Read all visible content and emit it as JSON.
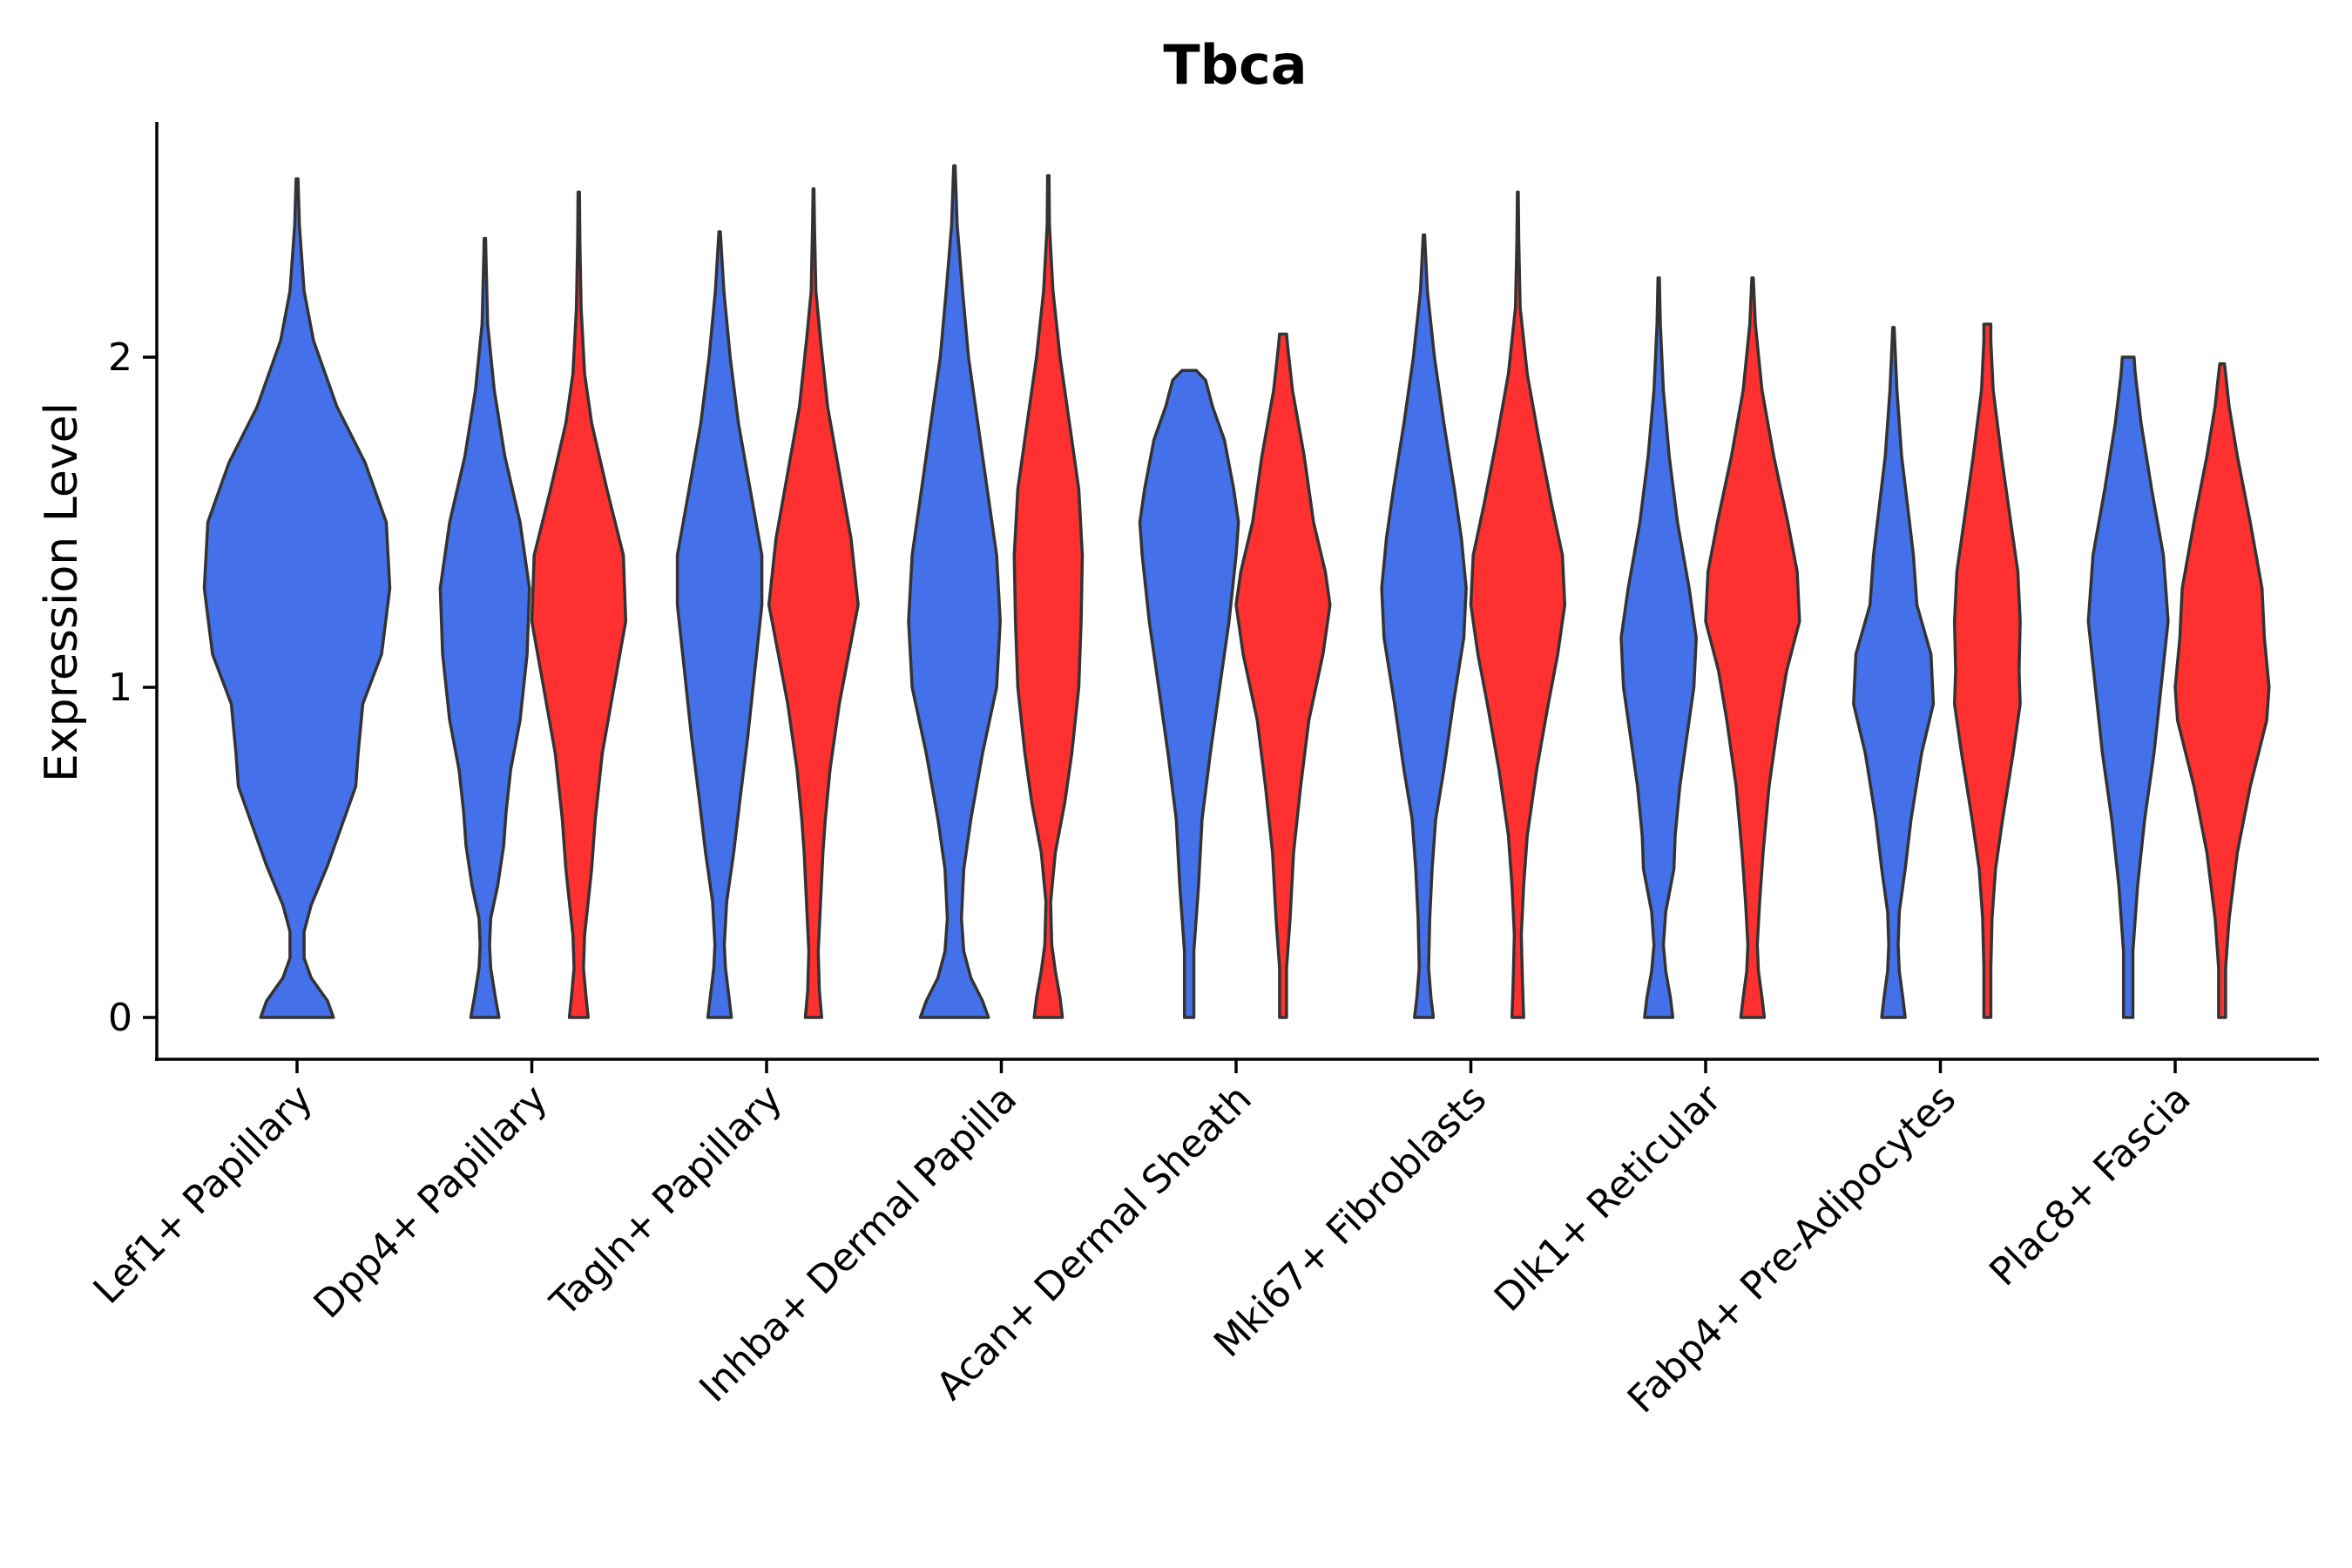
{
  "chart_data": {
    "type": "violin",
    "title": "Tbca",
    "xlabel": "",
    "ylabel": "Expression Level",
    "ylim": [
      -0.13,
      2.72
    ],
    "yticks": [
      0,
      1,
      2
    ],
    "grid": false,
    "legend": "none",
    "categories": [
      "Lef1+ Papillary",
      "Dpp4+ Papillary",
      "Tagln+ Papillary",
      "Inhba+ Dermal Papilla",
      "Acan+ Dermal Sheath",
      "Mki67+ Fibroblasts",
      "Dlk1+ Reticular",
      "Fabp4+ Pre-Adipocytes",
      "Plac8+ Fascia"
    ],
    "series_colors": {
      "blue": "#4470ea",
      "red": "#fe3030"
    },
    "violins": [
      {
        "category": "Lef1+ Papillary",
        "group": "blue",
        "offset": 0,
        "profile": [
          [
            0,
            0.155
          ],
          [
            0.05,
            0.13
          ],
          [
            0.12,
            0.06
          ],
          [
            0.18,
            0.03
          ],
          [
            0.26,
            0.03
          ],
          [
            0.34,
            0.06
          ],
          [
            0.46,
            0.13
          ],
          [
            0.58,
            0.19
          ],
          [
            0.7,
            0.25
          ],
          [
            0.8,
            0.26
          ],
          [
            0.95,
            0.28
          ],
          [
            1.1,
            0.36
          ],
          [
            1.3,
            0.395
          ],
          [
            1.5,
            0.38
          ],
          [
            1.68,
            0.29
          ],
          [
            1.85,
            0.17
          ],
          [
            2.05,
            0.07
          ],
          [
            2.2,
            0.03
          ],
          [
            2.4,
            0.01
          ],
          [
            2.54,
            0.004
          ]
        ]
      },
      {
        "category": "Dpp4+ Papillary",
        "group": "blue",
        "offset": -0.2,
        "profile": [
          [
            0,
            0.06
          ],
          [
            0.06,
            0.045
          ],
          [
            0.15,
            0.025
          ],
          [
            0.22,
            0.02
          ],
          [
            0.3,
            0.025
          ],
          [
            0.4,
            0.055
          ],
          [
            0.52,
            0.08
          ],
          [
            0.62,
            0.09
          ],
          [
            0.75,
            0.11
          ],
          [
            0.9,
            0.15
          ],
          [
            1.1,
            0.18
          ],
          [
            1.3,
            0.19
          ],
          [
            1.5,
            0.15
          ],
          [
            1.7,
            0.085
          ],
          [
            1.9,
            0.04
          ],
          [
            2.1,
            0.012
          ],
          [
            2.3,
            0.005
          ],
          [
            2.36,
            0.003
          ]
        ]
      },
      {
        "category": "Dpp4+ Papillary",
        "group": "red",
        "offset": 0.2,
        "profile": [
          [
            0,
            0.04
          ],
          [
            0.07,
            0.03
          ],
          [
            0.15,
            0.02
          ],
          [
            0.25,
            0.025
          ],
          [
            0.35,
            0.04
          ],
          [
            0.45,
            0.055
          ],
          [
            0.6,
            0.07
          ],
          [
            0.8,
            0.1
          ],
          [
            1.0,
            0.15
          ],
          [
            1.2,
            0.2
          ],
          [
            1.4,
            0.19
          ],
          [
            1.6,
            0.12
          ],
          [
            1.8,
            0.055
          ],
          [
            1.95,
            0.025
          ],
          [
            2.15,
            0.01
          ],
          [
            2.35,
            0.005
          ],
          [
            2.5,
            0.003
          ]
        ]
      },
      {
        "category": "Tagln+ Papillary",
        "group": "blue",
        "offset": -0.2,
        "profile": [
          [
            0,
            0.05
          ],
          [
            0.06,
            0.04
          ],
          [
            0.15,
            0.025
          ],
          [
            0.22,
            0.02
          ],
          [
            0.35,
            0.03
          ],
          [
            0.5,
            0.06
          ],
          [
            0.65,
            0.085
          ],
          [
            0.85,
            0.12
          ],
          [
            1.05,
            0.15
          ],
          [
            1.25,
            0.18
          ],
          [
            1.4,
            0.18
          ],
          [
            1.6,
            0.13
          ],
          [
            1.8,
            0.08
          ],
          [
            2.0,
            0.045
          ],
          [
            2.2,
            0.018
          ],
          [
            2.38,
            0.003
          ]
        ]
      },
      {
        "category": "Tagln+ Papillary",
        "group": "red",
        "offset": 0.2,
        "profile": [
          [
            0,
            0.035
          ],
          [
            0.08,
            0.025
          ],
          [
            0.2,
            0.02
          ],
          [
            0.35,
            0.03
          ],
          [
            0.5,
            0.04
          ],
          [
            0.6,
            0.05
          ],
          [
            0.75,
            0.07
          ],
          [
            0.95,
            0.11
          ],
          [
            1.1,
            0.15
          ],
          [
            1.25,
            0.19
          ],
          [
            1.45,
            0.16
          ],
          [
            1.65,
            0.11
          ],
          [
            1.85,
            0.06
          ],
          [
            2.05,
            0.03
          ],
          [
            2.2,
            0.01
          ],
          [
            2.4,
            0.004
          ],
          [
            2.51,
            0.002
          ]
        ]
      },
      {
        "category": "Inhba+ Dermal Papilla",
        "group": "blue",
        "offset": -0.2,
        "profile": [
          [
            0,
            0.145
          ],
          [
            0.05,
            0.12
          ],
          [
            0.12,
            0.07
          ],
          [
            0.2,
            0.04
          ],
          [
            0.3,
            0.03
          ],
          [
            0.45,
            0.04
          ],
          [
            0.6,
            0.07
          ],
          [
            0.8,
            0.12
          ],
          [
            1.0,
            0.18
          ],
          [
            1.2,
            0.195
          ],
          [
            1.4,
            0.18
          ],
          [
            1.6,
            0.14
          ],
          [
            1.8,
            0.1
          ],
          [
            2.0,
            0.06
          ],
          [
            2.2,
            0.035
          ],
          [
            2.4,
            0.012
          ],
          [
            2.58,
            0.003
          ]
        ]
      },
      {
        "category": "Inhba+ Dermal Papilla",
        "group": "red",
        "offset": 0.2,
        "profile": [
          [
            0,
            0.06
          ],
          [
            0.06,
            0.05
          ],
          [
            0.14,
            0.03
          ],
          [
            0.22,
            0.015
          ],
          [
            0.35,
            0.01
          ],
          [
            0.5,
            0.03
          ],
          [
            0.65,
            0.07
          ],
          [
            0.8,
            0.1
          ],
          [
            1.0,
            0.13
          ],
          [
            1.2,
            0.14
          ],
          [
            1.4,
            0.145
          ],
          [
            1.6,
            0.13
          ],
          [
            1.8,
            0.09
          ],
          [
            2.0,
            0.05
          ],
          [
            2.2,
            0.02
          ],
          [
            2.4,
            0.005
          ],
          [
            2.55,
            0.003
          ]
        ]
      },
      {
        "category": "Acan+ Dermal Sheath",
        "group": "blue",
        "offset": -0.2,
        "profile": [
          [
            0,
            0.02
          ],
          [
            0.2,
            0.02
          ],
          [
            0.4,
            0.04
          ],
          [
            0.6,
            0.055
          ],
          [
            0.8,
            0.09
          ],
          [
            1.0,
            0.13
          ],
          [
            1.2,
            0.17
          ],
          [
            1.4,
            0.2
          ],
          [
            1.5,
            0.21
          ],
          [
            1.6,
            0.19
          ],
          [
            1.75,
            0.15
          ],
          [
            1.85,
            0.1
          ],
          [
            1.93,
            0.07
          ],
          [
            1.96,
            0.03
          ]
        ]
      },
      {
        "category": "Acan+ Dermal Sheath",
        "group": "red",
        "offset": 0.2,
        "profile": [
          [
            0,
            0.015
          ],
          [
            0.15,
            0.015
          ],
          [
            0.3,
            0.03
          ],
          [
            0.5,
            0.045
          ],
          [
            0.7,
            0.075
          ],
          [
            0.9,
            0.11
          ],
          [
            1.1,
            0.17
          ],
          [
            1.25,
            0.2
          ],
          [
            1.35,
            0.18
          ],
          [
            1.5,
            0.13
          ],
          [
            1.7,
            0.09
          ],
          [
            1.9,
            0.04
          ],
          [
            2.03,
            0.02
          ],
          [
            2.07,
            0.015
          ]
        ]
      },
      {
        "category": "Mki67+ Fibroblasts",
        "group": "blue",
        "offset": -0.2,
        "profile": [
          [
            0,
            0.04
          ],
          [
            0.06,
            0.03
          ],
          [
            0.15,
            0.02
          ],
          [
            0.3,
            0.025
          ],
          [
            0.45,
            0.035
          ],
          [
            0.6,
            0.05
          ],
          [
            0.75,
            0.085
          ],
          [
            0.95,
            0.125
          ],
          [
            1.15,
            0.17
          ],
          [
            1.3,
            0.18
          ],
          [
            1.45,
            0.16
          ],
          [
            1.6,
            0.13
          ],
          [
            1.8,
            0.085
          ],
          [
            2.0,
            0.045
          ],
          [
            2.2,
            0.015
          ],
          [
            2.37,
            0.003
          ]
        ]
      },
      {
        "category": "Mki67+ Fibroblasts",
        "group": "red",
        "offset": 0.2,
        "profile": [
          [
            0,
            0.025
          ],
          [
            0.1,
            0.02
          ],
          [
            0.25,
            0.015
          ],
          [
            0.4,
            0.025
          ],
          [
            0.55,
            0.04
          ],
          [
            0.75,
            0.08
          ],
          [
            0.95,
            0.13
          ],
          [
            1.1,
            0.17
          ],
          [
            1.25,
            0.2
          ],
          [
            1.4,
            0.19
          ],
          [
            1.55,
            0.145
          ],
          [
            1.75,
            0.09
          ],
          [
            1.95,
            0.04
          ],
          [
            2.15,
            0.01
          ],
          [
            2.35,
            0.004
          ],
          [
            2.5,
            0.002
          ]
        ]
      },
      {
        "category": "Dlk1+ Reticular",
        "group": "blue",
        "offset": -0.2,
        "profile": [
          [
            0,
            0.06
          ],
          [
            0.06,
            0.05
          ],
          [
            0.14,
            0.03
          ],
          [
            0.22,
            0.02
          ],
          [
            0.32,
            0.03
          ],
          [
            0.45,
            0.065
          ],
          [
            0.55,
            0.07
          ],
          [
            0.7,
            0.09
          ],
          [
            0.85,
            0.12
          ],
          [
            1.0,
            0.15
          ],
          [
            1.15,
            0.16
          ],
          [
            1.3,
            0.13
          ],
          [
            1.5,
            0.08
          ],
          [
            1.7,
            0.045
          ],
          [
            1.9,
            0.02
          ],
          [
            2.1,
            0.007
          ],
          [
            2.24,
            0.003
          ]
        ]
      },
      {
        "category": "Dlk1+ Reticular",
        "group": "red",
        "offset": 0.2,
        "profile": [
          [
            0,
            0.05
          ],
          [
            0.06,
            0.04
          ],
          [
            0.14,
            0.025
          ],
          [
            0.22,
            0.02
          ],
          [
            0.35,
            0.03
          ],
          [
            0.5,
            0.045
          ],
          [
            0.7,
            0.07
          ],
          [
            0.9,
            0.11
          ],
          [
            1.05,
            0.145
          ],
          [
            1.2,
            0.2
          ],
          [
            1.35,
            0.19
          ],
          [
            1.5,
            0.15
          ],
          [
            1.7,
            0.09
          ],
          [
            1.9,
            0.04
          ],
          [
            2.1,
            0.012
          ],
          [
            2.24,
            0.003
          ]
        ]
      },
      {
        "category": "Fabp4+ Pre-Adipocytes",
        "group": "blue",
        "offset": -0.2,
        "profile": [
          [
            0,
            0.05
          ],
          [
            0.06,
            0.04
          ],
          [
            0.14,
            0.025
          ],
          [
            0.22,
            0.02
          ],
          [
            0.32,
            0.025
          ],
          [
            0.45,
            0.05
          ],
          [
            0.6,
            0.075
          ],
          [
            0.8,
            0.12
          ],
          [
            0.95,
            0.17
          ],
          [
            1.1,
            0.16
          ],
          [
            1.25,
            0.1
          ],
          [
            1.4,
            0.085
          ],
          [
            1.55,
            0.06
          ],
          [
            1.7,
            0.035
          ],
          [
            1.9,
            0.015
          ],
          [
            2.09,
            0.003
          ]
        ]
      },
      {
        "category": "Fabp4+ Pre-Adipocytes",
        "group": "red",
        "offset": 0.2,
        "profile": [
          [
            0,
            0.015
          ],
          [
            0.15,
            0.015
          ],
          [
            0.3,
            0.02
          ],
          [
            0.45,
            0.035
          ],
          [
            0.6,
            0.065
          ],
          [
            0.8,
            0.11
          ],
          [
            0.95,
            0.14
          ],
          [
            1.05,
            0.135
          ],
          [
            1.2,
            0.14
          ],
          [
            1.35,
            0.13
          ],
          [
            1.5,
            0.1
          ],
          [
            1.7,
            0.06
          ],
          [
            1.9,
            0.025
          ],
          [
            2.05,
            0.015
          ],
          [
            2.1,
            0.015
          ]
        ]
      },
      {
        "category": "Plac8+ Fascia",
        "group": "blue",
        "offset": -0.2,
        "profile": [
          [
            0,
            0.02
          ],
          [
            0.2,
            0.02
          ],
          [
            0.4,
            0.04
          ],
          [
            0.6,
            0.07
          ],
          [
            0.8,
            0.11
          ],
          [
            1.0,
            0.14
          ],
          [
            1.2,
            0.17
          ],
          [
            1.4,
            0.15
          ],
          [
            1.6,
            0.1
          ],
          [
            1.8,
            0.055
          ],
          [
            1.95,
            0.03
          ],
          [
            2.0,
            0.025
          ]
        ]
      },
      {
        "category": "Plac8+ Fascia",
        "group": "red",
        "offset": 0.2,
        "profile": [
          [
            0,
            0.015
          ],
          [
            0.15,
            0.015
          ],
          [
            0.3,
            0.03
          ],
          [
            0.5,
            0.065
          ],
          [
            0.7,
            0.12
          ],
          [
            0.9,
            0.19
          ],
          [
            1.0,
            0.2
          ],
          [
            1.15,
            0.18
          ],
          [
            1.3,
            0.17
          ],
          [
            1.5,
            0.12
          ],
          [
            1.7,
            0.065
          ],
          [
            1.85,
            0.03
          ],
          [
            1.95,
            0.015
          ],
          [
            1.98,
            0.01
          ]
        ]
      }
    ]
  }
}
